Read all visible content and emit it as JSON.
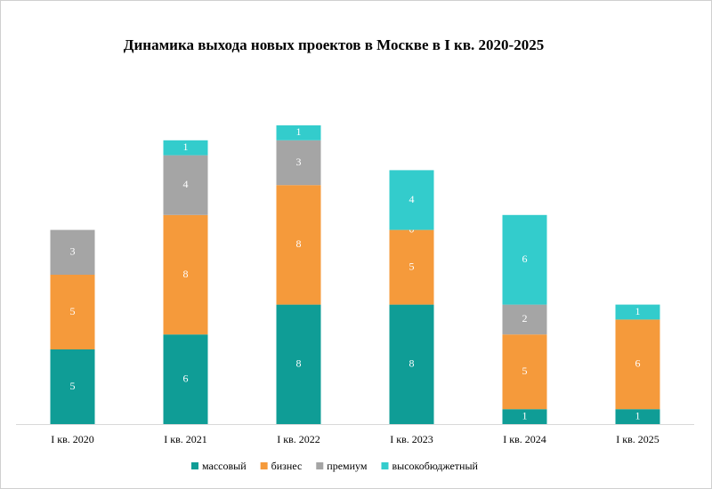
{
  "chart_data": {
    "type": "stacked_bar",
    "title": "Динамика выхода новых проектов в Москве в I кв. 2020-2025",
    "categories": [
      "I кв. 2020",
      "I кв. 2021",
      "I кв. 2022",
      "I кв. 2023",
      "I кв. 2024",
      "I кв. 2025"
    ],
    "series": [
      {
        "name": "массовый",
        "color": "#0f9d96",
        "values": [
          5,
          6,
          8,
          8,
          1,
          1
        ]
      },
      {
        "name": "бизнес",
        "color": "#f59a3b",
        "values": [
          5,
          8,
          8,
          5,
          5,
          6
        ]
      },
      {
        "name": "премиум",
        "color": "#a5a5a5",
        "values": [
          3,
          4,
          3,
          0,
          2,
          null
        ]
      },
      {
        "name": "высокобюджетный",
        "color": "#33cccc",
        "values": [
          null,
          1,
          1,
          4,
          6,
          1
        ]
      }
    ],
    "ylim": [
      0,
      25
    ],
    "legend": "bottom"
  }
}
